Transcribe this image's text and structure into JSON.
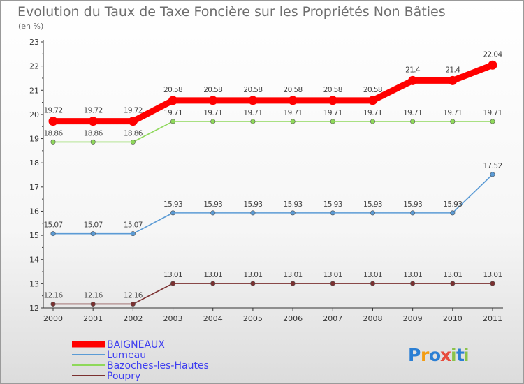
{
  "chart_data": {
    "type": "line",
    "title": "Evolution du Taux de Taxe Foncière sur les Propriétés Non Bâties",
    "subtitle": "(en %)",
    "xlabel": "",
    "ylabel": "",
    "x": [
      "2000",
      "2001",
      "2002",
      "2003",
      "2004",
      "2005",
      "2006",
      "2007",
      "2008",
      "2009",
      "2010",
      "2011"
    ],
    "ylim": [
      12,
      23
    ],
    "yticks": [
      "12",
      "13",
      "14",
      "15",
      "16",
      "17",
      "18",
      "19",
      "20",
      "21",
      "22",
      "23"
    ],
    "grid": false,
    "legend_position": "bottom-left",
    "series": [
      {
        "name": "BAIGNEAUX",
        "color": "#ff0000",
        "values": [
          19.72,
          19.72,
          19.72,
          20.58,
          20.58,
          20.58,
          20.58,
          20.58,
          20.58,
          21.4,
          21.4,
          22.04
        ],
        "labels": [
          "19.72",
          "19.72",
          "19.72",
          "20.58",
          "20.58",
          "20.58",
          "20.58",
          "20.58",
          "20.58",
          "21.4",
          "21.4",
          "22.04"
        ]
      },
      {
        "name": "Lumeau",
        "color": "#5b9bd5",
        "values": [
          15.07,
          15.07,
          15.07,
          15.93,
          15.93,
          15.93,
          15.93,
          15.93,
          15.93,
          15.93,
          15.93,
          17.52
        ],
        "labels": [
          "15.07",
          "15.07",
          "15.07",
          "15.93",
          "15.93",
          "15.93",
          "15.93",
          "15.93",
          "15.93",
          "15.93",
          "15.93",
          "17.52"
        ]
      },
      {
        "name": "Bazoches-les-Hautes",
        "color": "#8ed85a",
        "values": [
          18.86,
          18.86,
          18.86,
          19.71,
          19.71,
          19.71,
          19.71,
          19.71,
          19.71,
          19.71,
          19.71,
          19.71
        ],
        "labels": [
          "18.86",
          "18.86",
          "18.86",
          "19.71",
          "19.71",
          "19.71",
          "19.71",
          "19.71",
          "19.71",
          "19.71",
          "19.71",
          "19.71"
        ]
      },
      {
        "name": "Poupry",
        "color": "#7b3030",
        "values": [
          12.16,
          12.16,
          12.16,
          13.01,
          13.01,
          13.01,
          13.01,
          13.01,
          13.01,
          13.01,
          13.01,
          13.01
        ],
        "labels": [
          "12.16",
          "12.16",
          "12.16",
          "13.01",
          "13.01",
          "13.01",
          "13.01",
          "13.01",
          "13.01",
          "13.01",
          "13.01",
          "13.01"
        ]
      }
    ]
  },
  "logo": {
    "text": "Proxiti",
    "colors": [
      "#2b7fd4",
      "#f39c12",
      "#2b7fd4",
      "#e74c3c",
      "#8bc34a",
      "#2b7fd4",
      "#8bc34a"
    ]
  }
}
